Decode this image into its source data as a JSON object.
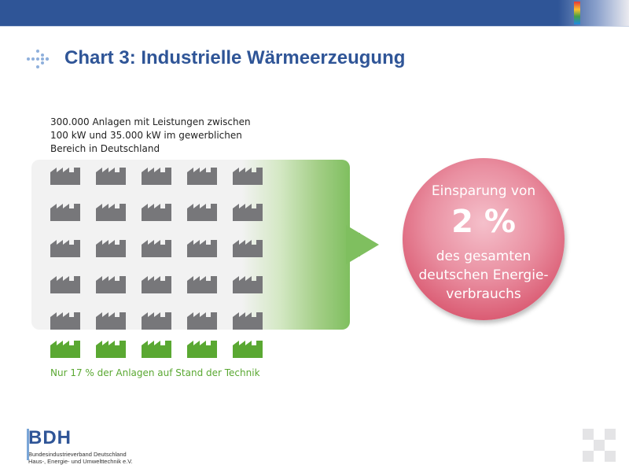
{
  "slide": {
    "title": "Chart 3: Industrielle Wärmeerzeugung",
    "description_lines": [
      "300.000 Anlagen mit Leistungen zwischen",
      "100 kW und 35.000 kW im gewerblichen",
      "Bereich in Deutschland"
    ],
    "note": "Nur 17 % der Anlagen auf  Stand der Technik",
    "factory_grid": {
      "rows_gray": 5,
      "rows_green": 1,
      "columns": 5
    },
    "circle": {
      "line1": "Einsparung von",
      "value": "2 %",
      "line3": "des gesamten",
      "line4": "deutschen Energie-",
      "line5": "verbrauchs"
    }
  },
  "logo": {
    "name": "BDH",
    "sub1": "Bundesindustrieverband Deutschland",
    "sub2": "Haus-, Energie- und Umwelttechnik e.V."
  },
  "colors": {
    "brand_blue": "#2f5597",
    "factory_gray": "#77777a",
    "factory_green": "#5aa832",
    "arrow_green": "#7fbf5f",
    "circle_red": "#d9576f"
  },
  "icons": [
    "dotted-arrow-icon",
    "factory-icon"
  ]
}
